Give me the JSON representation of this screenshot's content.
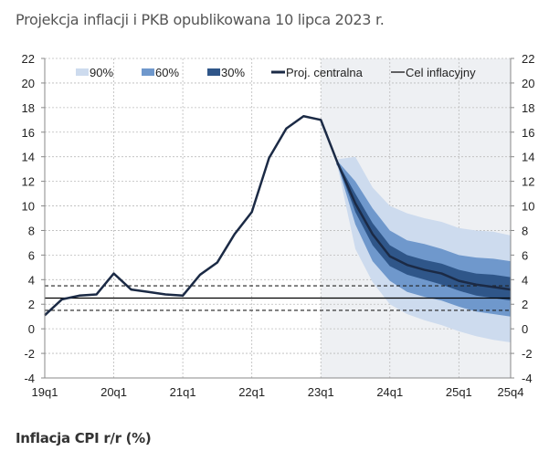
{
  "title": "Projekcja inflacji i PKB opublikowana 10 lipca 2023 r.",
  "caption": "Inflacja CPI r/r (%)",
  "chart_data": {
    "type": "area",
    "title": "Projekcja inflacji i PKB opublikowana 10 lipca 2023 r.",
    "xlabel": "",
    "ylabel": "",
    "ylim": [
      -4,
      22
    ],
    "y_ticks": [
      22,
      20,
      18,
      16,
      14,
      12,
      10,
      8,
      6,
      4,
      2,
      0,
      -2,
      -4
    ],
    "quarters": [
      "19q1",
      "19q2",
      "19q3",
      "19q4",
      "20q1",
      "20q2",
      "20q3",
      "20q4",
      "21q1",
      "21q2",
      "21q3",
      "21q4",
      "22q1",
      "22q2",
      "22q3",
      "22q4",
      "23q1",
      "23q2",
      "23q3",
      "23q4",
      "24q1",
      "24q2",
      "24q3",
      "24q4",
      "25q1",
      "25q2",
      "25q3",
      "25q4"
    ],
    "x_tick_labels": [
      "19q1",
      "20q1",
      "21q1",
      "22q1",
      "23q1",
      "24q1",
      "25q1",
      "25q4"
    ],
    "projection_start": "23q1",
    "grid": true,
    "legend_position": "top",
    "legend": [
      "90%",
      "60%",
      "30%",
      "Proj. centralna",
      "Cel inflacyjny"
    ],
    "colors": {
      "band90": "#cddbee",
      "band60": "#6f98cc",
      "band30": "#2f5689",
      "central": "#1b2a45",
      "target": "#000000",
      "projection_bg": "#eef0f3"
    },
    "central": [
      1.1,
      2.4,
      2.7,
      2.8,
      4.5,
      3.2,
      3.0,
      2.8,
      2.7,
      4.4,
      5.4,
      7.7,
      9.5,
      13.9,
      16.3,
      17.3,
      17.0,
      13.4,
      10.2,
      7.7,
      5.9,
      5.2,
      4.8,
      4.5,
      3.9,
      3.6,
      3.4,
      3.2
    ],
    "bands": {
      "quarters": [
        "23q2",
        "23q3",
        "23q4",
        "24q1",
        "24q2",
        "24q3",
        "24q4",
        "25q1",
        "25q2",
        "25q3",
        "25q4"
      ],
      "90": {
        "upper": [
          13.8,
          14.0,
          11.5,
          10.0,
          9.4,
          9.0,
          8.7,
          8.2,
          8.0,
          7.9,
          7.6
        ],
        "lower": [
          13.0,
          6.5,
          3.8,
          2.0,
          1.2,
          0.7,
          0.3,
          -0.2,
          -0.6,
          -0.9,
          -1.1
        ]
      },
      "60": {
        "upper": [
          13.6,
          12.0,
          9.8,
          8.0,
          7.2,
          6.9,
          6.5,
          6.0,
          5.8,
          5.7,
          5.5
        ],
        "lower": [
          13.2,
          8.5,
          5.5,
          3.9,
          3.0,
          2.6,
          2.3,
          1.8,
          1.4,
          1.2,
          1.0
        ]
      },
      "30": {
        "upper": [
          13.5,
          11.0,
          8.6,
          6.8,
          6.0,
          5.6,
          5.3,
          4.8,
          4.5,
          4.4,
          4.2
        ],
        "lower": [
          13.3,
          9.5,
          6.8,
          5.1,
          4.4,
          4.0,
          3.6,
          3.1,
          2.7,
          2.5,
          2.3
        ]
      }
    },
    "target": 2.5,
    "tolerance_band": [
      1.5,
      3.5
    ]
  }
}
